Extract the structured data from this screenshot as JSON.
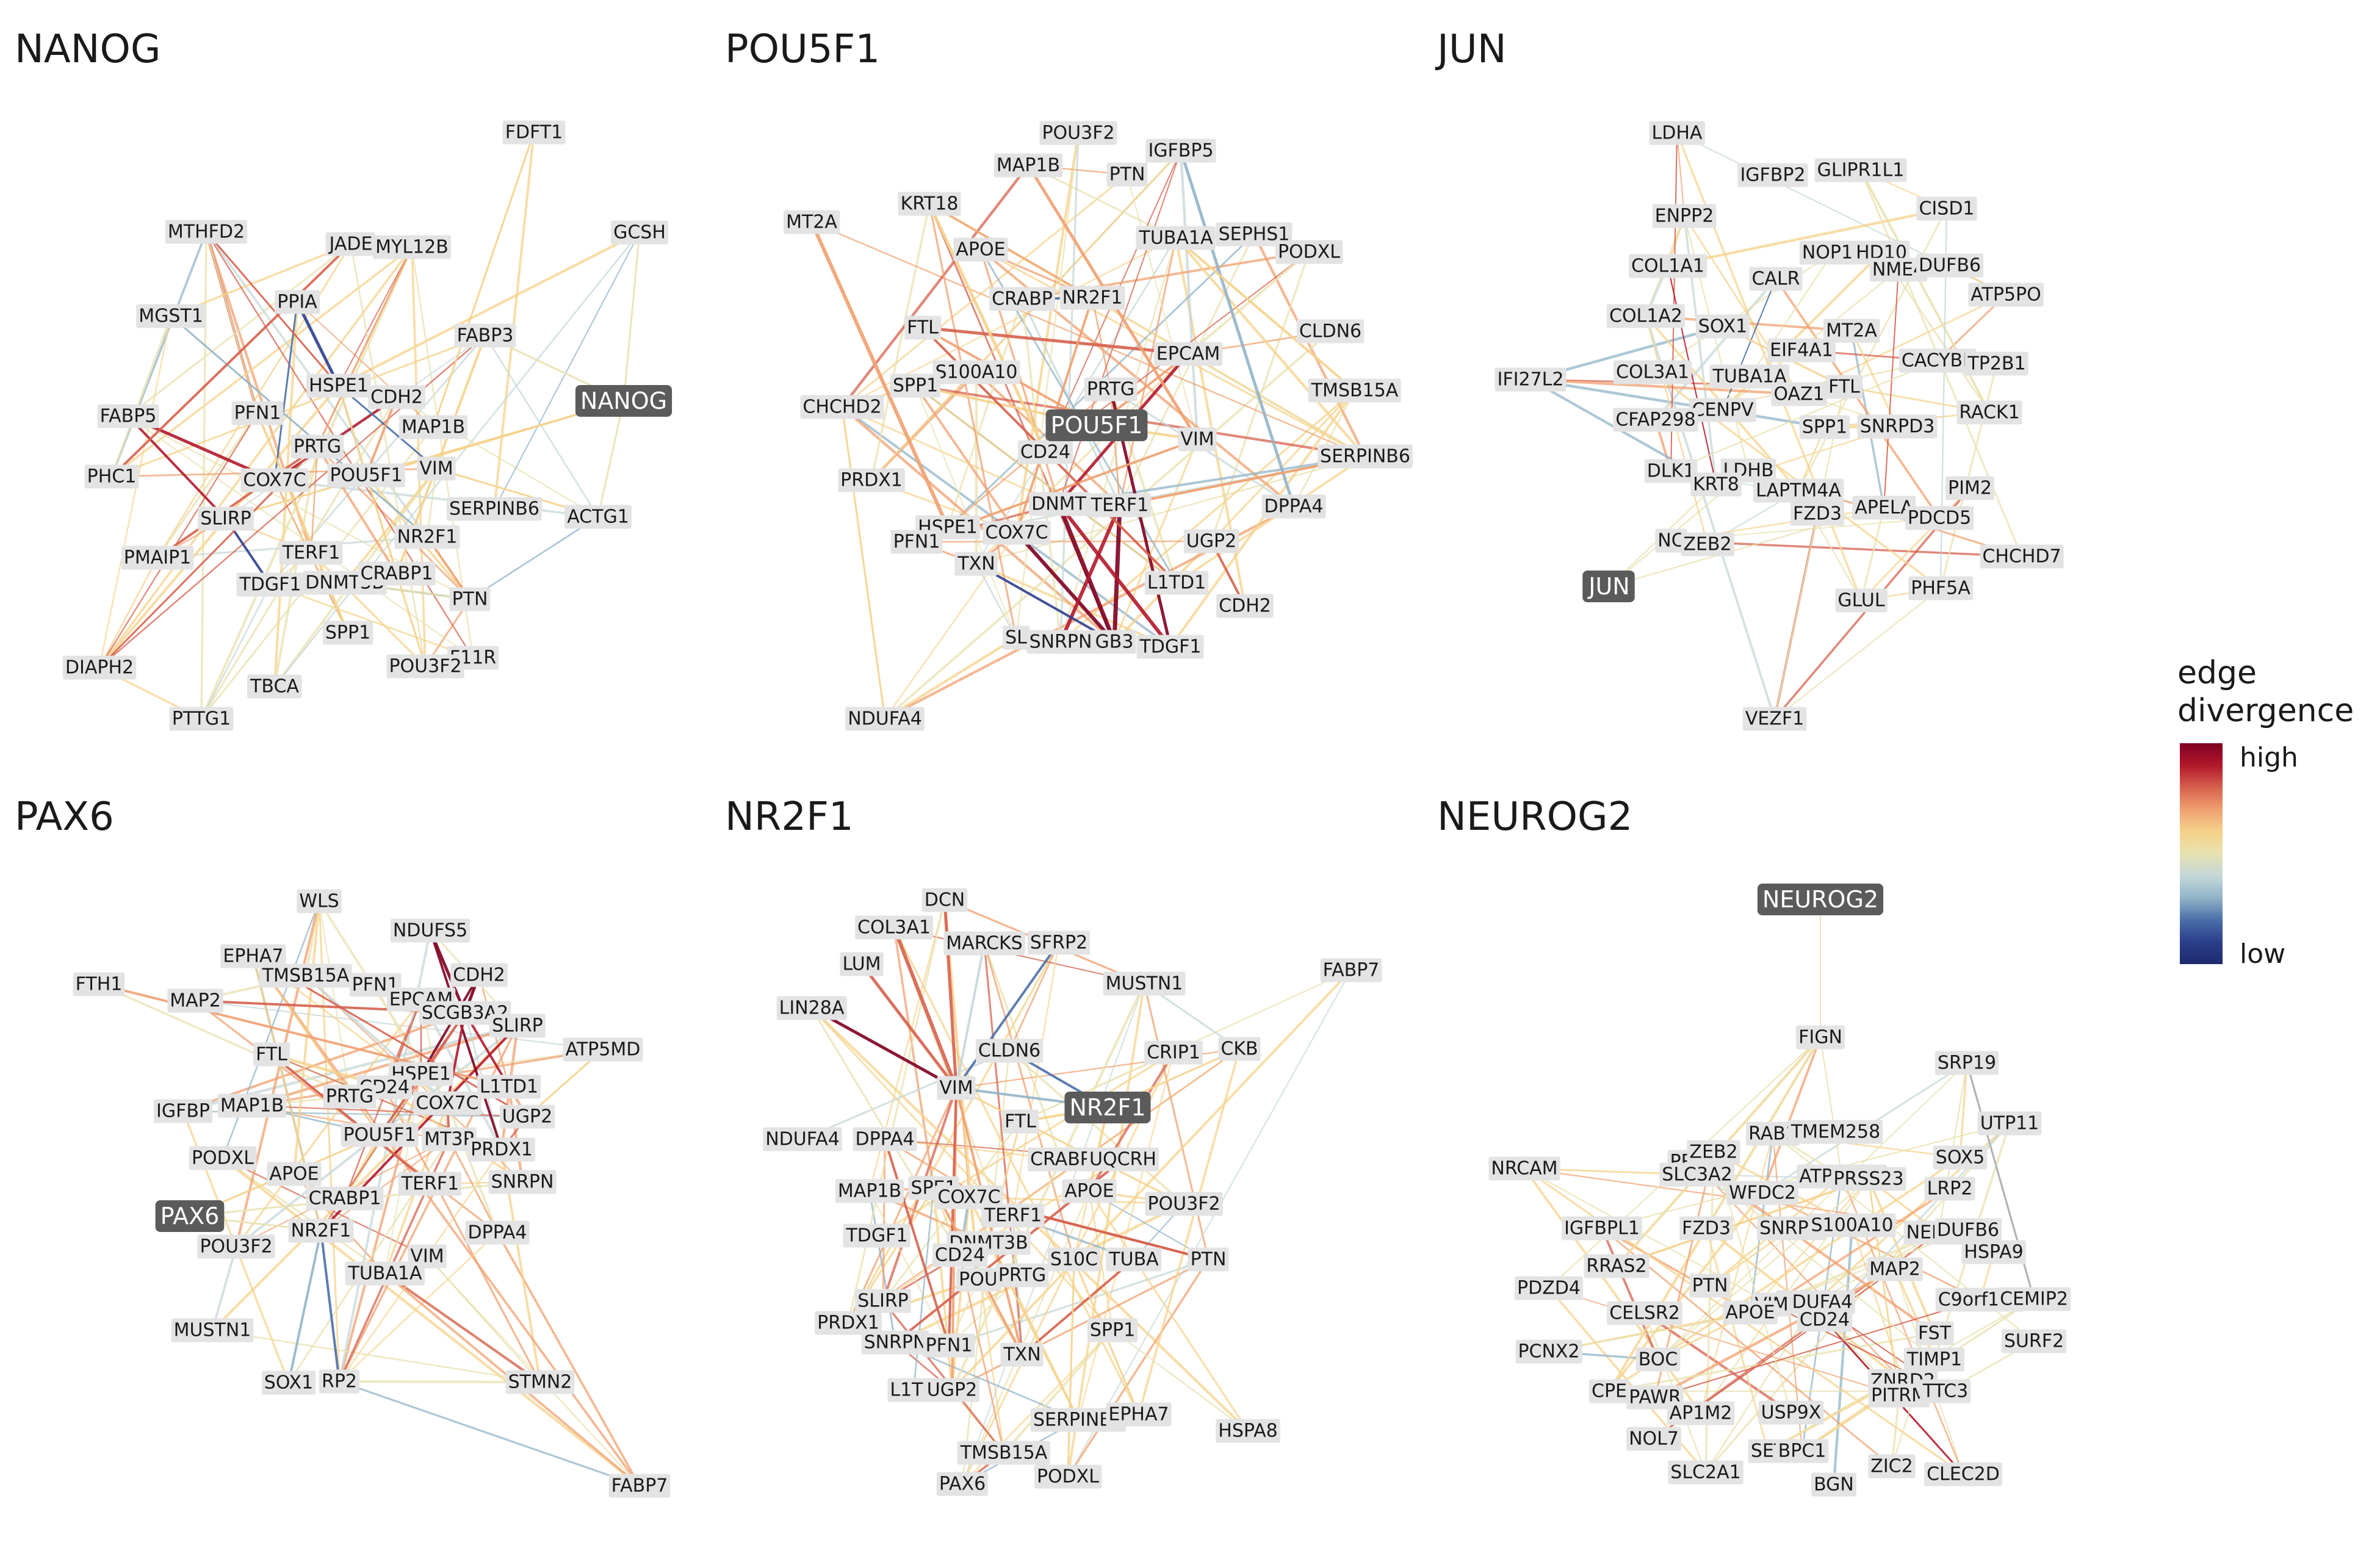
{
  "legend": {
    "title_line1": "edge",
    "title_line2": "divergence",
    "high": "high",
    "low": "low",
    "colors": [
      "#7f0020",
      "#b2182b",
      "#d6604d",
      "#f0a070",
      "#f5d28a",
      "#e8e2b0",
      "#c5d7d8",
      "#92b4c8",
      "#4a6fa8",
      "#2c3e8c",
      "#1d2a6b"
    ]
  },
  "panels": [
    {
      "title": "NANOG",
      "hub": "NANOG",
      "nodes": [
        "FDFT1",
        "GCSH",
        "MTHFD2",
        "JADE",
        "MYL12B",
        "MGST1",
        "PPIA",
        "FABP3",
        "HSPE1",
        "CDH2",
        "FABP5",
        "PFN1",
        "MAP1B",
        "PRTG",
        "PHC1",
        "COX7C",
        "POU5F1",
        "VIM",
        "SERPINB6",
        "ACTG1",
        "SLIRP",
        "NR2F1",
        "PMAIP1",
        "TERF1",
        "TDGF1",
        "DNMT3B",
        "CRABP1",
        "PTN",
        "F11R",
        "SPP1",
        "POU3F2",
        "DIAPH2",
        "TBCA",
        "PTTG1",
        "NANOG"
      ]
    },
    {
      "title": "POU5F1",
      "hub": "POU5F1",
      "nodes": [
        "POU3F2",
        "IGFBP5",
        "MAP1B",
        "PTN",
        "KRT18",
        "MT2A",
        "TUBA1A",
        "SEPHS1",
        "APOE",
        "PODXL",
        "CRABP",
        "NR2F1",
        "FTL",
        "CLDN6",
        "EPCAM",
        "S100A10",
        "PRTG",
        "SPP1",
        "TMSB15A",
        "CHCHD2",
        "VIM",
        "CD24",
        "SERPINB6",
        "PRDX1",
        "HSPE1",
        "DNMT",
        "TERF1",
        "DPPA4",
        "PFN1",
        "COX7C",
        "UGP2",
        "TXN",
        "L1TD1",
        "CDH2",
        "SL",
        "SNRPN",
        "GB3",
        "TDGF1",
        "NDUFA4",
        "POU5F1"
      ]
    },
    {
      "title": "JUN",
      "hub": "JUN",
      "nodes": [
        "LDHA",
        "IGFBP2",
        "GLIPR1L1",
        "ENPP2",
        "CISD1",
        "NOP10",
        "HD10",
        "COL1A1",
        "NME4",
        "DUFB6",
        "CALR",
        "ATP5PO",
        "COL1A2",
        "SOX1",
        "MT2A",
        "EIF4A1",
        "CACYBP",
        "TP2B1",
        "IFI27L2",
        "COL3A1",
        "TUBA1A",
        "OAZ1",
        "FTL",
        "CENPV",
        "RACK1",
        "CFAP298",
        "SPP1",
        "SNRPD3",
        "DLK1",
        "LDHB",
        "KRT8",
        "LAPTM4A",
        "PIM2",
        "APELA",
        "FZD3",
        "PDCD5",
        "NC",
        "ZEB2",
        "CHCHD7",
        "PHF5A",
        "GLUL",
        "VEZF1",
        "JUN"
      ]
    },
    {
      "title": "PAX6",
      "hub": "PAX6",
      "nodes": [
        "WLS",
        "NDUFS5",
        "EPHA7",
        "CDH2",
        "TMSB15A",
        "PFN1",
        "FTH1",
        "MAP2",
        "EPCAM",
        "SCGB3A2",
        "SLIRP",
        "ATP5MD",
        "FTL",
        "HSPE1",
        "L1TD1",
        "CD24",
        "COX7C",
        "MAP1B",
        "PRTG",
        "IGFBP",
        "UGP2",
        "MT3P",
        "PRDX1",
        "PODXL",
        "POU5F1",
        "APOE",
        "SNRPN",
        "TERF1",
        "CRABP1",
        "POU3F2",
        "NR2F1",
        "DPPA4",
        "VIM",
        "TUBA1A",
        "MUSTN1",
        "SOX1",
        "RP2",
        "STMN2",
        "FABP7",
        "PAX6"
      ]
    },
    {
      "title": "NR2F1",
      "hub": "NR2F1",
      "nodes": [
        "DCN",
        "COL3A1",
        "MARCKS",
        "SFRP2",
        "LUM",
        "MUSTN1",
        "FABP7",
        "LIN28A",
        "CRIP1",
        "CKB",
        "CLDN6",
        "VIM",
        "NDUFA4",
        "DPPA4",
        "FTL",
        "CRABP",
        "UQCRH",
        "MAP1B",
        "SPE1",
        "COX7C",
        "APOE",
        "POU3F2",
        "TDGF1",
        "TERF1",
        "DNMT3B",
        "CD24",
        "S10C",
        "TUBA",
        "PTN",
        "POU",
        "PRTG",
        "SLIRP",
        "PRDX1",
        "SNRPN",
        "PFN1",
        "TXN",
        "SPP1",
        "L1TD",
        "UGP2",
        "SERPINB6",
        "EPHA7",
        "HSPA8",
        "TMSB15A",
        "PAX6",
        "PODXL",
        "NR2F1"
      ]
    },
    {
      "title": "NEUROG2",
      "hub": "NEUROG2",
      "nodes": [
        "FIGN",
        "SRP19",
        "UTP11",
        "NRCAM",
        "RAB1",
        "TMEM258",
        "PRSS",
        "ZEB2",
        "SOX5",
        "SLC3A2",
        "ATP5MC2",
        "WFDC2",
        "PRSS23",
        "LRP2",
        "IGFBPL1",
        "FZD3",
        "SNRPG",
        "S100A10",
        "NEDD8",
        "DUFB6",
        "HSPA9",
        "RRAS2",
        "MAP2",
        "PDZD4",
        "PTN",
        "NDUFA4",
        "C9orf135",
        "CEMIP2",
        "VIM",
        "CELSR2",
        "APOE",
        "CD24",
        "FST",
        "SURF2",
        "PCNX2",
        "BOC",
        "TIMP1",
        "CPE",
        "PAWR",
        "ZNRD2",
        "PITRM",
        "TTC3",
        "AP1M2",
        "USP9X",
        "NOL7",
        "SET",
        "BPC1",
        "SLC2A1",
        "ZIC2",
        "CLEC2D",
        "BGN",
        "NEUROG2"
      ]
    }
  ]
}
